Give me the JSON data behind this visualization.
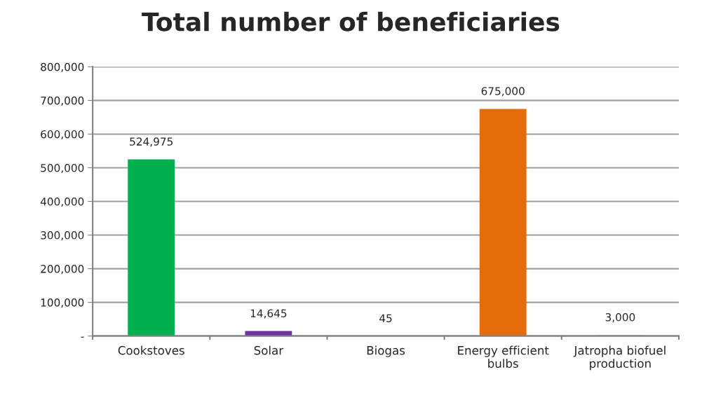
{
  "chart_data": {
    "type": "bar",
    "title": "Total number of beneficiaries",
    "categories": [
      "Cookstoves",
      "Solar",
      "Biogas",
      "Energy efficient bulbs",
      "Jatropha biofuel production"
    ],
    "values": [
      524975,
      14645,
      45,
      675000,
      3000
    ],
    "colors": [
      "#00b050",
      "#7030a0",
      "#c0504d",
      "#e46c0a",
      "#95b3d7"
    ],
    "ylim": [
      0,
      800000
    ],
    "yticks": [
      {
        "value": 0,
        "label": "-"
      },
      {
        "value": 100000,
        "label": "100,000"
      },
      {
        "value": 200000,
        "label": "200,000"
      },
      {
        "value": 300000,
        "label": "300,000"
      },
      {
        "value": 400000,
        "label": "400,000"
      },
      {
        "value": 500000,
        "label": "500,000"
      },
      {
        "value": 600000,
        "label": "600,000"
      },
      {
        "value": 700000,
        "label": "700,000"
      },
      {
        "value": 800000,
        "label": "800,000"
      }
    ],
    "value_labels": [
      "524,975",
      "14,645",
      "45",
      "675,000",
      "3,000"
    ],
    "grid": "y",
    "legend": false
  }
}
